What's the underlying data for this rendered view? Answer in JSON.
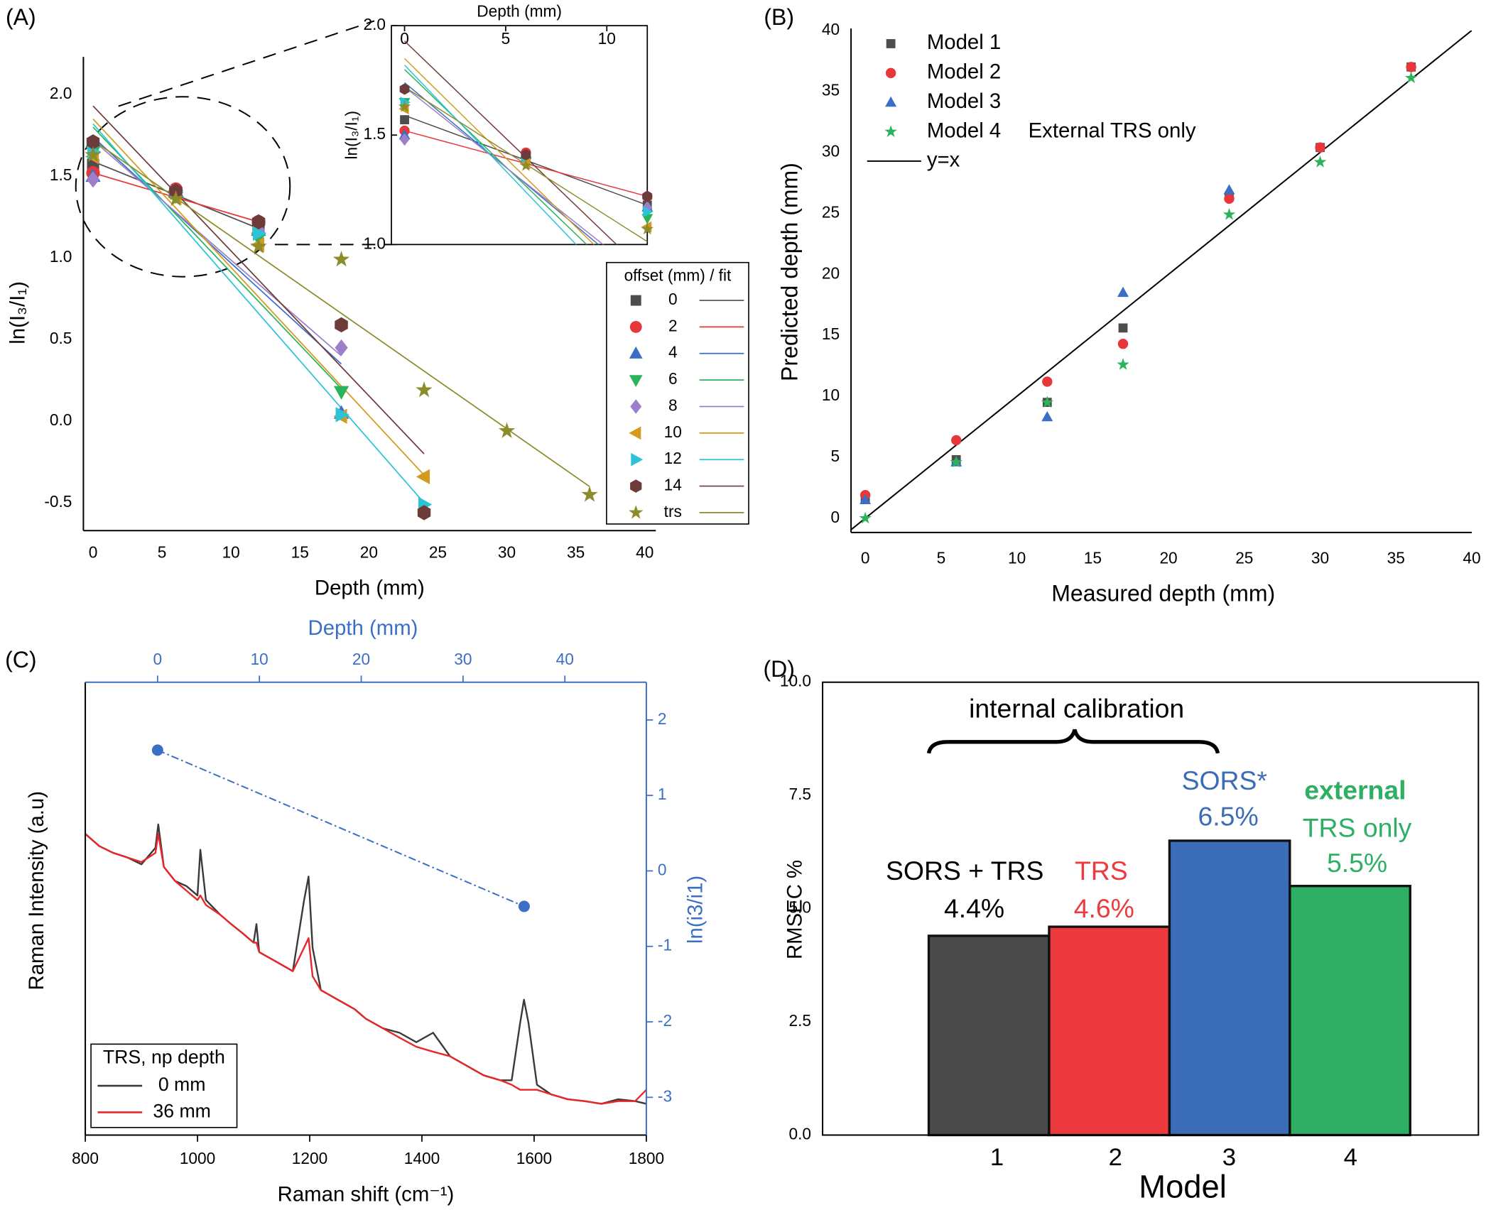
{
  "chart_data": [
    {
      "type": "scatter",
      "title": "(A)",
      "xlabel": "Depth (mm)",
      "ylabel": "ln(I₃/I₁)",
      "xlim": [
        -0.7,
        40.8
      ],
      "ylim": [
        -0.67,
        2.23
      ],
      "xticks": [
        0,
        5,
        10,
        15,
        20,
        25,
        30,
        35,
        40
      ],
      "yticks": [
        -0.5,
        {
          "value": 0,
          "label": "0.0"
        },
        0.5,
        {
          "value": 1,
          "label": "1.0"
        },
        1.5,
        {
          "value": 2,
          "label": "2.0"
        }
      ],
      "legend_title": "offset (mm) / fit",
      "series": [
        {
          "name": "0",
          "color": "#4d4d4d",
          "marker": "square",
          "x": [
            0,
            6,
            12
          ],
          "y": [
            1.57,
            1.4,
            1.18
          ],
          "fit_x": [
            0,
            12
          ],
          "fit_y": [
            1.59,
            1.18
          ]
        },
        {
          "name": "2",
          "color": "#e8373a",
          "marker": "circle",
          "x": [
            0,
            6,
            12
          ],
          "y": [
            1.52,
            1.42,
            1.22
          ],
          "fit_x": [
            0,
            12
          ],
          "fit_y": [
            1.52,
            1.22
          ]
        },
        {
          "name": "4",
          "color": "#3b6fc6",
          "marker": "triangle-up",
          "x": [
            0,
            6,
            12,
            18
          ],
          "y": [
            1.5,
            1.41,
            1.17,
            0.05
          ],
          "fit_x": [
            0,
            18
          ],
          "fit_y": [
            1.74,
            0.35
          ]
        },
        {
          "name": "6",
          "color": "#2bb35c",
          "marker": "triangle-down",
          "x": [
            0,
            6,
            12,
            18
          ],
          "y": [
            1.65,
            1.38,
            1.12,
            0.18
          ],
          "fit_x": [
            0,
            18
          ],
          "fit_y": [
            1.8,
            0.2
          ]
        },
        {
          "name": "8",
          "color": "#9d7fc9",
          "marker": "diamond",
          "x": [
            0,
            6,
            12,
            18
          ],
          "y": [
            1.48,
            1.4,
            1.17,
            0.45
          ],
          "fit_x": [
            0,
            18
          ],
          "fit_y": [
            1.72,
            0.4
          ]
        },
        {
          "name": "10",
          "color": "#d4991f",
          "marker": "triangle-left",
          "x": [
            0,
            6,
            12,
            18,
            24
          ],
          "y": [
            1.62,
            1.37,
            1.08,
            0.03,
            -0.34
          ],
          "fit_x": [
            0,
            24
          ],
          "fit_y": [
            1.85,
            -0.33
          ]
        },
        {
          "name": "12",
          "color": "#2ac3d8",
          "marker": "triangle-right",
          "x": [
            0,
            6,
            12,
            18,
            24
          ],
          "y": [
            1.65,
            1.4,
            1.15,
            0.04,
            -0.51
          ],
          "fit_x": [
            0,
            24
          ],
          "fit_y": [
            1.82,
            -0.5
          ]
        },
        {
          "name": "14",
          "color": "#6e3b3b",
          "marker": "hexagon",
          "x": [
            0,
            6,
            12,
            18,
            24
          ],
          "y": [
            1.71,
            1.41,
            1.22,
            0.59,
            -0.56
          ],
          "fit_x": [
            0,
            24
          ],
          "fit_y": [
            1.93,
            -0.2
          ]
        },
        {
          "name": "trs",
          "color": "#8d8c2b",
          "marker": "star",
          "x": [
            0,
            6,
            12,
            18,
            24,
            30,
            36
          ],
          "y": [
            1.63,
            1.36,
            1.07,
            0.99,
            0.19,
            -0.06,
            -0.45
          ],
          "fit_x": [
            0,
            36
          ],
          "fit_y": [
            1.72,
            -0.4
          ]
        }
      ],
      "inset": {
        "xlabel": "Depth (mm)",
        "ylabel": "ln(I₃/I₁)",
        "xlim": [
          -0.65,
          12.0
        ],
        "ylim": [
          1.0,
          2.0
        ],
        "xticks": [
          0,
          5,
          10
        ],
        "yticks": [
          {
            "value": 1,
            "label": "1.0"
          },
          1.5,
          {
            "value": 2,
            "label": "2.0"
          }
        ]
      }
    },
    {
      "type": "scatter",
      "title": "(B)",
      "xlabel": "Measured depth (mm)",
      "ylabel": "Predicted depth (mm)",
      "xlim": [
        -0.94,
        40
      ],
      "ylim": [
        -1.17,
        40
      ],
      "xticks": [
        0,
        5,
        10,
        15,
        20,
        25,
        30,
        35,
        40
      ],
      "yticks": [
        0,
        5,
        10,
        15,
        20,
        25,
        30,
        35,
        40
      ],
      "series": [
        {
          "name": "Model 1",
          "color": "#4d4d4d",
          "marker": "square",
          "x": [
            0,
            6,
            12,
            17,
            24,
            30,
            36
          ],
          "y": [
            1.6,
            4.8,
            9.5,
            15.6,
            26.4,
            30.4,
            37.0
          ]
        },
        {
          "name": "Model 2",
          "color": "#e8373a",
          "marker": "circle",
          "x": [
            0,
            6,
            12,
            17,
            24,
            30,
            36
          ],
          "y": [
            1.9,
            6.4,
            11.2,
            14.3,
            26.2,
            30.4,
            37.0
          ]
        },
        {
          "name": "Model 3",
          "color": "#3b6fc6",
          "marker": "triangle-up",
          "x": [
            0,
            6,
            12,
            17,
            24
          ],
          "y": [
            1.5,
            4.6,
            8.3,
            18.5,
            26.9
          ]
        },
        {
          "name": "Model 4",
          "color": "#2bb35c",
          "marker": "star",
          "x": [
            0,
            6,
            12,
            17,
            24,
            30,
            36
          ],
          "y": [
            0.0,
            4.6,
            9.5,
            12.6,
            24.9,
            29.2,
            36.1
          ]
        }
      ],
      "legend_note": "External TRS only",
      "reference_line": {
        "name": "y=x",
        "slope": 1,
        "intercept": 0,
        "color": "#000000"
      }
    },
    {
      "type": "line",
      "title": "(C)",
      "xlabel": "Raman shift (cm⁻¹)",
      "ylabel": "Raman Intensity (a.u)",
      "x2label": "Depth (mm)",
      "y2label": "ln(i3/i1)",
      "xlim": [
        800,
        1800
      ],
      "ylim": [
        0,
        100
      ],
      "x2lim": [
        -7.1,
        48
      ],
      "y2lim": [
        -3.5,
        2.5
      ],
      "xticks": [
        800,
        1000,
        1200,
        1400,
        1600,
        1800
      ],
      "x2ticks": [
        0,
        10,
        20,
        30,
        40
      ],
      "y2ticks": [
        -3,
        -2,
        -1,
        0,
        1,
        2
      ],
      "legend_title": "TRS, np depth",
      "x": [
        800,
        825,
        850,
        875,
        900,
        925,
        930,
        940,
        960,
        980,
        1000,
        1005,
        1015,
        1040,
        1060,
        1080,
        1100,
        1105,
        1110,
        1140,
        1170,
        1190,
        1198,
        1205,
        1220,
        1250,
        1280,
        1300,
        1330,
        1360,
        1390,
        1420,
        1450,
        1480,
        1510,
        1540,
        1560,
        1575,
        1582,
        1590,
        1605,
        1630,
        1660,
        1690,
        1720,
        1750,
        1780,
        1800
      ],
      "series": [
        {
          "name": "0 mm",
          "color": "#3a3a3a",
          "values": [
            66.5,
            63.8,
            62.3,
            61.3,
            59.8,
            63.4,
            68.6,
            59.2,
            56.1,
            55.0,
            52.9,
            63.0,
            51.9,
            48.7,
            46.6,
            44.6,
            42.5,
            46.6,
            40.4,
            38.3,
            36.2,
            51.9,
            57.1,
            41.4,
            32.0,
            29.9,
            27.8,
            25.7,
            23.6,
            22.6,
            20.5,
            22.6,
            17.4,
            15.3,
            13.2,
            12.1,
            12.1,
            24.7,
            29.9,
            24.7,
            11.1,
            9.0,
            7.9,
            7.5,
            6.9,
            7.9,
            7.5,
            6.9
          ]
        },
        {
          "name": "36 mm",
          "color": "#e8272a",
          "values": [
            66.5,
            63.8,
            62.3,
            61.3,
            60.3,
            62.3,
            66.5,
            59.2,
            56.1,
            54.0,
            51.9,
            52.9,
            50.8,
            48.7,
            46.6,
            44.6,
            42.5,
            42.5,
            40.4,
            38.3,
            36.2,
            41.4,
            43.5,
            35.1,
            32.0,
            29.9,
            27.8,
            25.7,
            23.6,
            21.5,
            19.5,
            18.4,
            17.4,
            15.3,
            13.2,
            12.1,
            11.1,
            10.0,
            10.0,
            10.0,
            10.0,
            9.0,
            7.9,
            7.5,
            6.9,
            7.5,
            7.5,
            10.0
          ]
        }
      ],
      "secondary": {
        "axis": "y2",
        "color": "#3b6fc6",
        "x": [
          0,
          36
        ],
        "y": [
          1.6,
          -0.47
        ]
      }
    },
    {
      "type": "bar",
      "title": "(D)",
      "xlabel": "Model",
      "ylabel": "RMSEC %",
      "categories": [
        "1",
        "2",
        "3",
        "4"
      ],
      "values": [
        4.4,
        4.6,
        6.5,
        5.5
      ],
      "value_labels": [
        "4.4%",
        "4.6%",
        "6.5%",
        "5.5%"
      ],
      "colors": [
        "#4a4a4a",
        "#ec3a3f",
        "#3b6cb7",
        "#2eaf64"
      ],
      "ylim": [
        0,
        10
      ],
      "yticks": [
        {
          "value": 0,
          "label": "0.0"
        },
        2.5,
        {
          "value": 5,
          "label": "5.0"
        },
        7.5,
        {
          "value": 10,
          "label": "10.0"
        }
      ],
      "annotations": [
        "SORS + TRS",
        "TRS",
        "SORS*",
        "external",
        "TRS only",
        "internal calibration"
      ]
    }
  ]
}
